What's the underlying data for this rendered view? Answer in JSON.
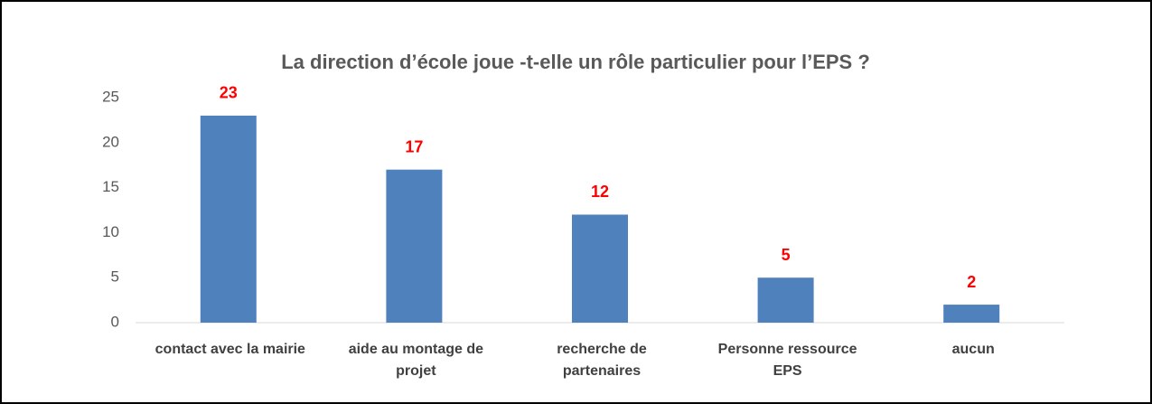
{
  "chart_data": {
    "type": "bar",
    "title": "La direction d’école joue -t-elle un rôle particulier pour l’EPS ?",
    "categories": [
      "contact avec la mairie",
      "aide au montage de projet",
      "recherche de partenaires",
      "Personne ressource EPS",
      "aucun"
    ],
    "values": [
      23,
      17,
      12,
      5,
      2
    ],
    "color": "#4f81bd",
    "value_label_color": "#ff0000",
    "ylim": [
      0,
      25
    ],
    "yticks": [
      0,
      5,
      10,
      15,
      20,
      25
    ],
    "grid": false
  }
}
